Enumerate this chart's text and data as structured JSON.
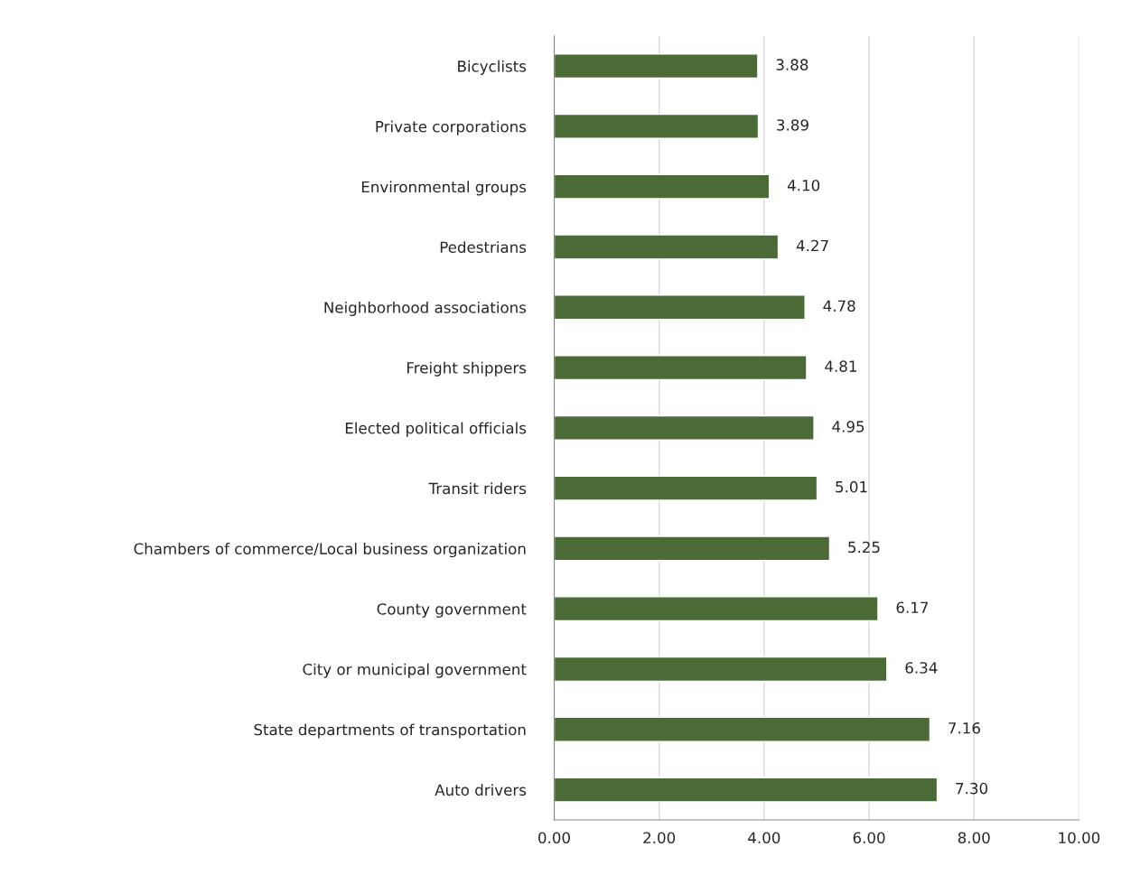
{
  "chart_data": {
    "type": "bar",
    "orientation": "horizontal",
    "categories": [
      "Bicyclists",
      "Private corporations",
      "Environmental groups",
      "Pedestrians",
      "Neighborhood associations",
      "Freight shippers",
      "Elected political officials",
      "Transit riders",
      "Chambers of commerce/Local business organization",
      "County government",
      "City or municipal government",
      "State departments of transportation",
      "Auto drivers"
    ],
    "series": [
      {
        "color": "#4a6b35",
        "values": [
          3.88,
          3.89,
          4.1,
          4.27,
          4.78,
          4.81,
          4.95,
          5.01,
          5.25,
          6.17,
          6.34,
          7.16,
          7.3
        ],
        "value_labels": [
          "3.88",
          "3.89",
          "4.10",
          "4.27",
          "4.78",
          "4.81",
          "4.95",
          "5.01",
          "5.25",
          "6.17",
          "6.34",
          "7.16",
          "7.30"
        ]
      }
    ],
    "xlim": [
      0,
      10
    ],
    "xticks": [
      {
        "value": 0,
        "label": "0.00"
      },
      {
        "value": 2,
        "label": "2.00"
      },
      {
        "value": 4,
        "label": "4.00"
      },
      {
        "value": 6,
        "label": "6.00"
      },
      {
        "value": 8,
        "label": "8.00"
      },
      {
        "value": 10,
        "label": "10.00"
      }
    ],
    "grid": "x",
    "legend": false
  }
}
